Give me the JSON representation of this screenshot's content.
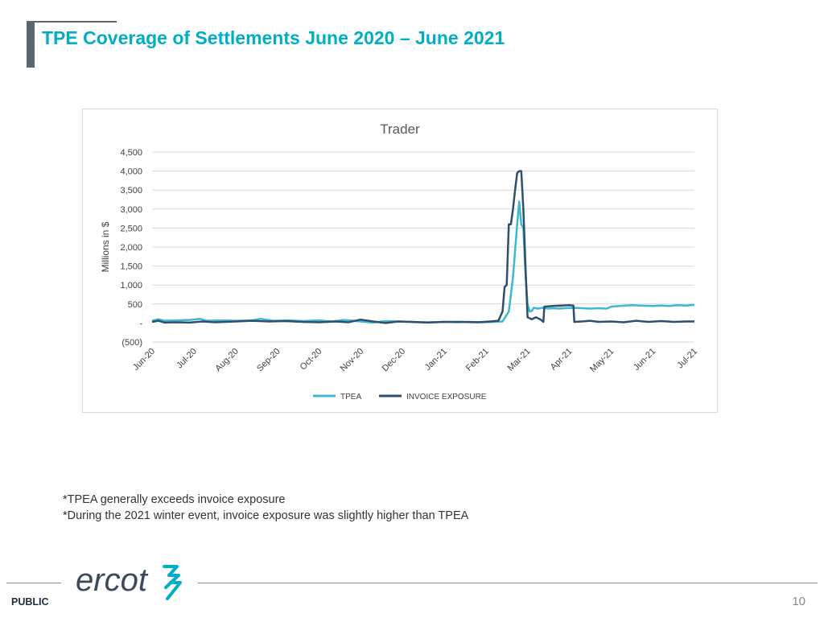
{
  "slide": {
    "title": "TPE Coverage of Settlements June 2020 – June 2021",
    "notes": [
      "*TPEA generally exceeds invoice exposure",
      "*During the 2021 winter event, invoice exposure was slightly higher than TPEA"
    ],
    "footer": {
      "public_label": "PUBLIC",
      "page_number": "10",
      "logo_text": "ercot"
    }
  },
  "colors": {
    "title": "#00aec7",
    "tpea": "#3db8d0",
    "invoice": "#2e4f6e",
    "grid": "#d9d9d9"
  },
  "chart_data": {
    "type": "line",
    "title": "Trader",
    "ylabel": "Millions in $",
    "xlabel": "",
    "ylim": [
      -500,
      4500
    ],
    "yticks": [
      4500,
      4000,
      3500,
      3000,
      2500,
      2000,
      1500,
      1000,
      500,
      0,
      -500
    ],
    "ytick_labels": [
      "4,500",
      "4,000",
      "3,500",
      "3,000",
      "2,500",
      "2,000",
      "1,500",
      "1,000",
      "500",
      "-",
      "(500)"
    ],
    "xlim": [
      0,
      13
    ],
    "categories": [
      "Jun-20",
      "Jul-20",
      "Aug-20",
      "Sep-20",
      "Oct-20",
      "Nov-20",
      "Dec-20",
      "Jan-21",
      "Feb-21",
      "Mar-21",
      "Apr-21",
      "May-21",
      "Jun-21",
      "Jul-21"
    ],
    "grid": true,
    "legend": "bottom",
    "series": [
      {
        "name": "TPEA",
        "x": [
          0,
          0.15,
          0.3,
          0.6,
          0.9,
          1.15,
          1.3,
          1.6,
          2.0,
          2.4,
          2.6,
          2.9,
          3.3,
          3.6,
          4.0,
          4.3,
          4.6,
          5.0,
          5.3,
          5.6,
          5.9,
          6.2,
          6.6,
          7.0,
          7.3,
          7.6,
          7.9,
          8.2,
          8.4,
          8.55,
          8.65,
          8.75,
          8.8,
          8.85,
          8.9,
          8.95,
          9.0,
          9.05,
          9.1,
          9.15,
          9.25,
          9.35,
          9.5,
          9.6,
          9.75,
          9.9,
          10.1,
          10.3,
          10.5,
          10.7,
          10.9,
          11.0,
          11.2,
          11.5,
          11.7,
          12.0,
          12.2,
          12.4,
          12.6,
          12.8,
          13.0
        ],
        "values": [
          60,
          100,
          60,
          70,
          80,
          110,
          60,
          70,
          60,
          70,
          110,
          60,
          70,
          50,
          70,
          40,
          80,
          40,
          10,
          50,
          40,
          30,
          20,
          30,
          20,
          30,
          20,
          30,
          40,
          300,
          1200,
          2600,
          3200,
          2600,
          2500,
          1300,
          500,
          300,
          320,
          400,
          380,
          400,
          380,
          390,
          380,
          390,
          400,
          390,
          380,
          390,
          380,
          430,
          450,
          470,
          460,
          450,
          460,
          450,
          470,
          460,
          480
        ]
      },
      {
        "name": "INVOICE EXPOSURE",
        "x": [
          0,
          0.15,
          0.3,
          0.6,
          0.9,
          1.2,
          1.5,
          2.0,
          2.4,
          2.8,
          3.2,
          3.6,
          4.0,
          4.4,
          4.7,
          5.0,
          5.3,
          5.6,
          5.9,
          6.2,
          6.6,
          7.0,
          7.4,
          7.8,
          8.1,
          8.3,
          8.4,
          8.45,
          8.5,
          8.55,
          8.6,
          8.65,
          8.7,
          8.75,
          8.8,
          8.85,
          8.9,
          8.95,
          9.0,
          9.1,
          9.2,
          9.3,
          9.38,
          9.4,
          9.6,
          9.8,
          10.0,
          10.1,
          10.12,
          10.3,
          10.5,
          10.7,
          11.0,
          11.3,
          11.6,
          11.9,
          12.2,
          12.5,
          12.8,
          13.0
        ],
        "values": [
          30,
          60,
          10,
          20,
          10,
          40,
          20,
          40,
          60,
          40,
          50,
          30,
          20,
          40,
          20,
          90,
          40,
          0,
          40,
          30,
          10,
          30,
          30,
          20,
          40,
          60,
          300,
          950,
          1000,
          2600,
          2600,
          3000,
          3500,
          3950,
          4000,
          4000,
          3000,
          1500,
          150,
          100,
          150,
          100,
          30,
          430,
          450,
          460,
          470,
          460,
          30,
          40,
          60,
          30,
          40,
          20,
          60,
          30,
          50,
          30,
          40,
          40
        ]
      }
    ]
  }
}
